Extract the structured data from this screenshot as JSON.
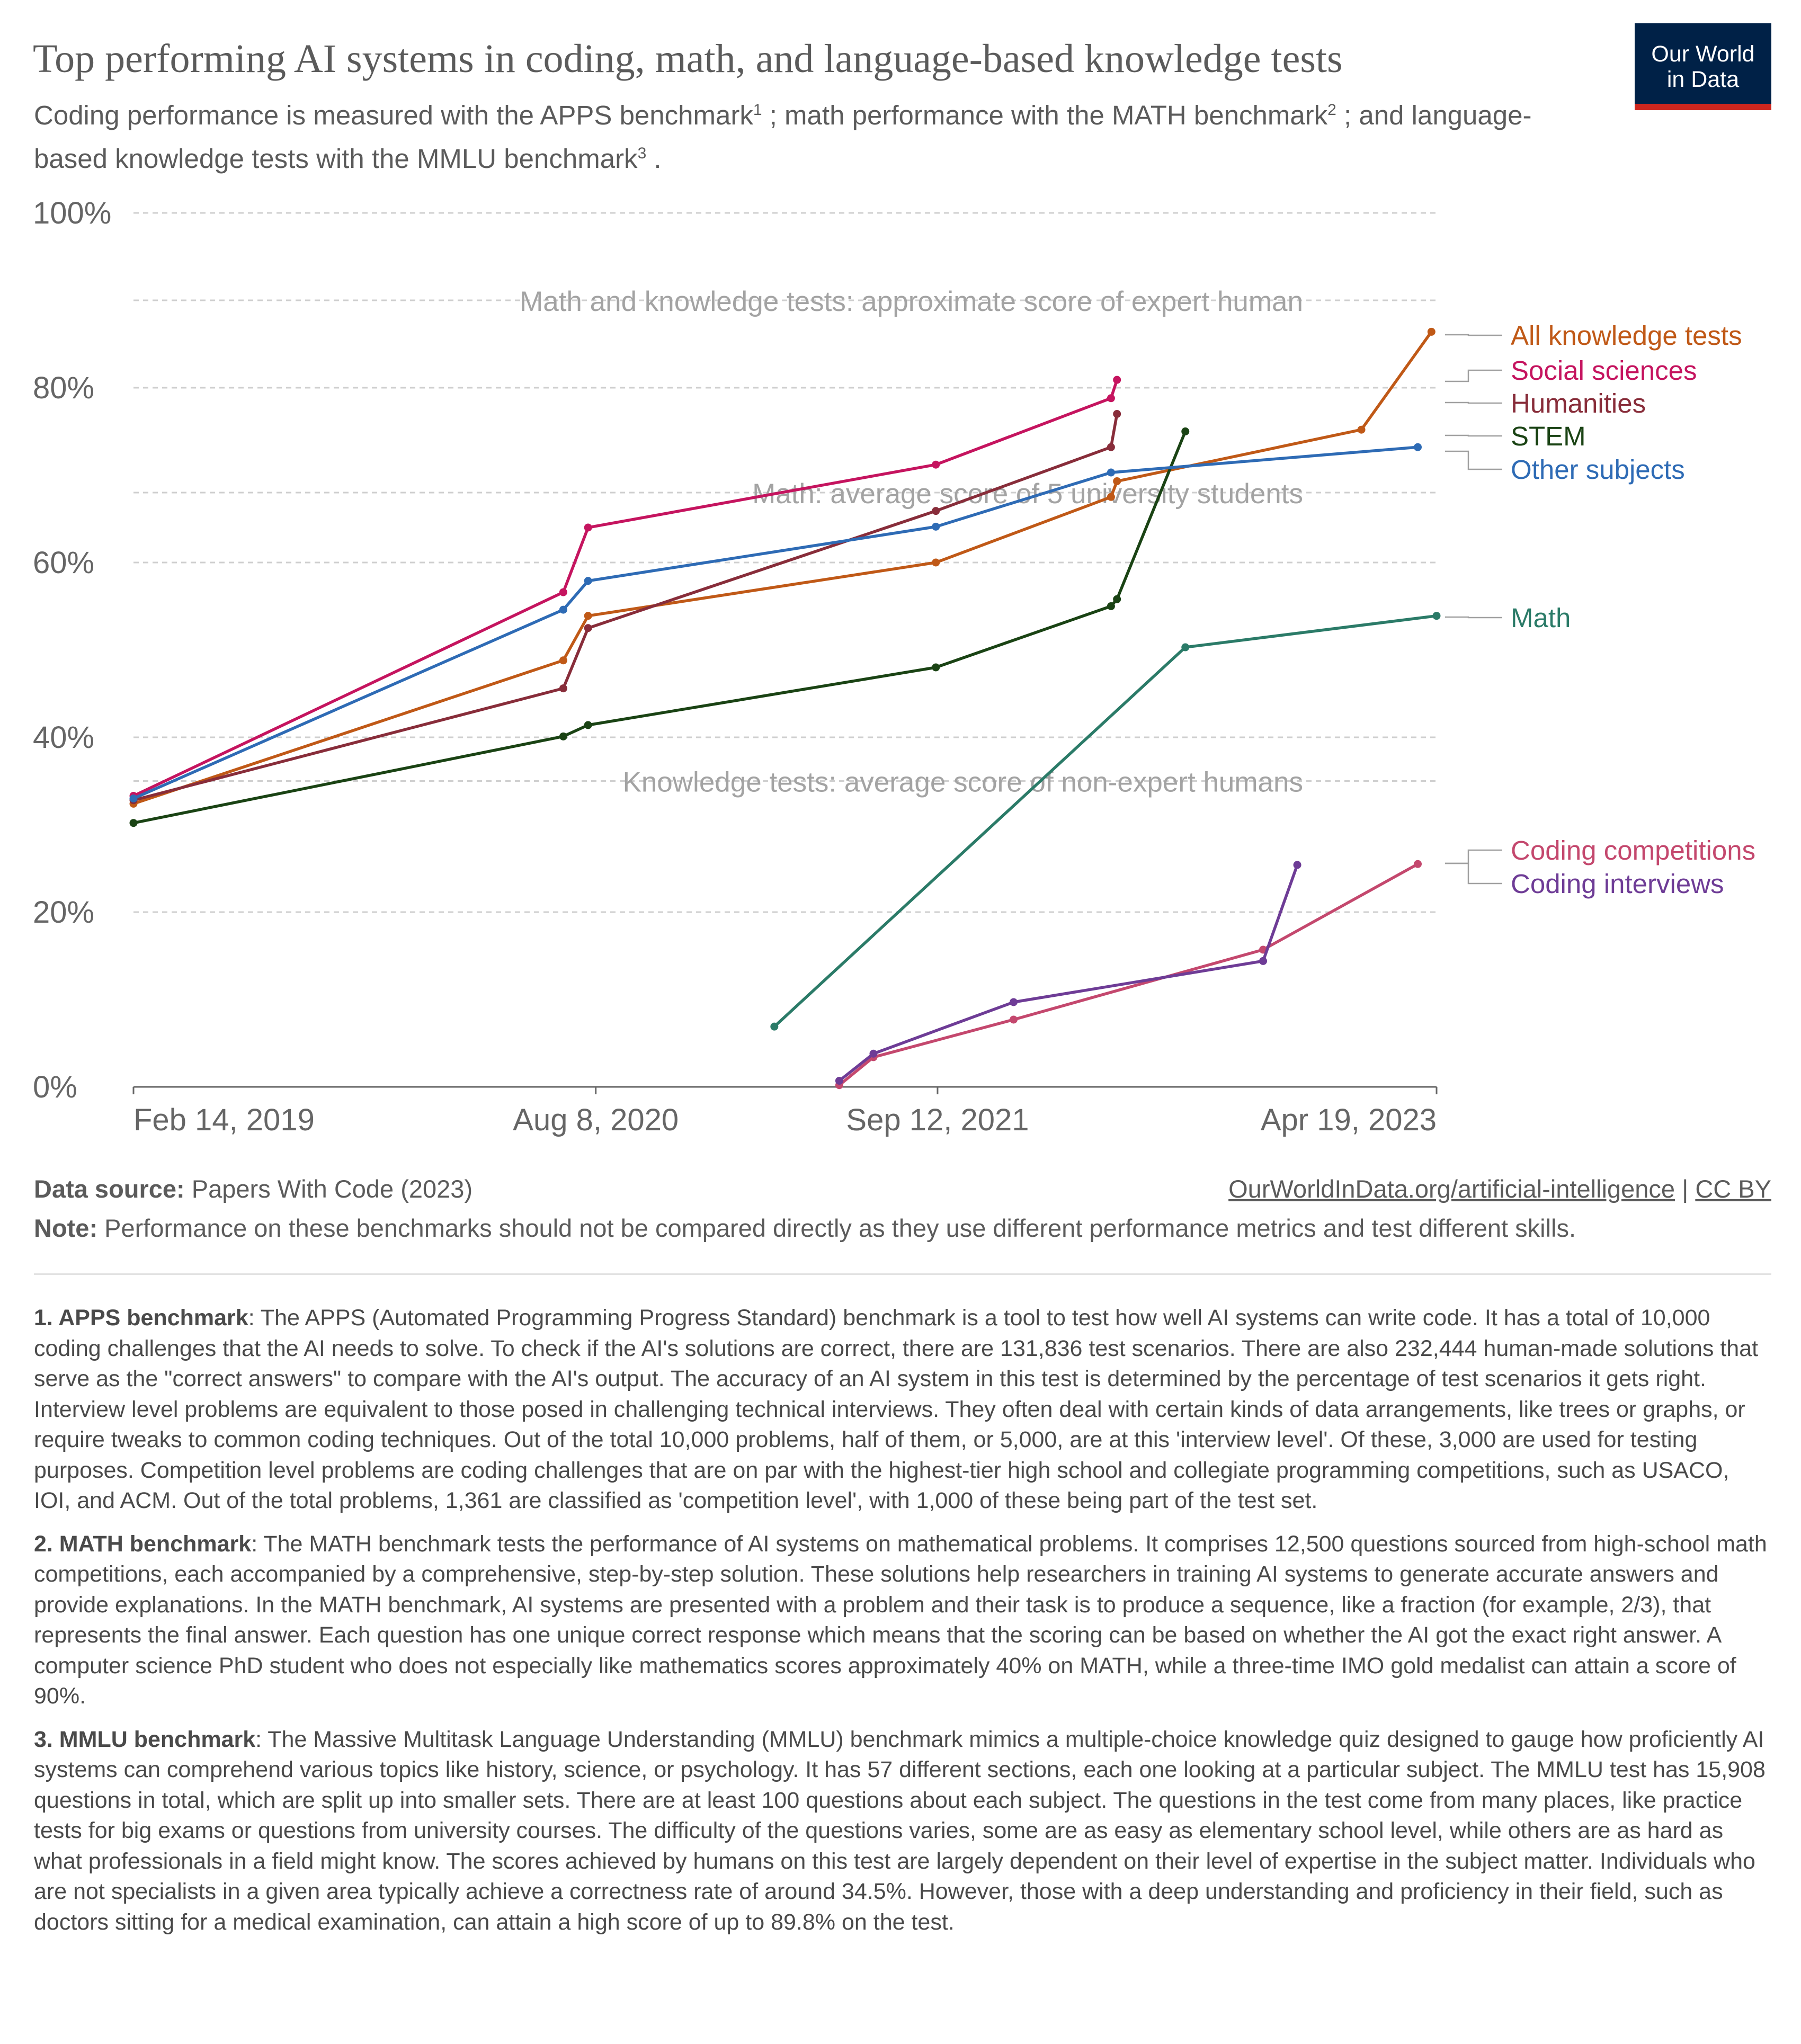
{
  "header": {
    "title": "Top performing AI systems in coding, math, and language-based knowledge tests",
    "subtitle_parts": [
      "Coding performance is measured with the APPS benchmark",
      "1",
      " ; math performance with the MATH benchmark",
      "2",
      " ; and language-based knowledge tests with the MMLU benchmark",
      "3",
      " ."
    ]
  },
  "logo": {
    "line1": "Our World",
    "line2": "in Data"
  },
  "colors": {
    "All knowledge tests": "#c05917",
    "Social sciences": "#c5145f",
    "Humanities": "#882d3a",
    "STEM": "#1a4314",
    "Other subjects": "#2e6bb5",
    "Math": "#2b7b68",
    "Coding competitions": "#c4486e",
    "Coding interviews": "#6e3c96",
    "grid": "#cfcfcf",
    "axis": "#666666",
    "reference_text": "#a3a3a3"
  },
  "chart_data": {
    "type": "line",
    "y_unit": "%",
    "ylim": [
      0,
      100
    ],
    "y_ticks": [
      {
        "v": 0,
        "label": "0%"
      },
      {
        "v": 20,
        "label": "20%"
      },
      {
        "v": 40,
        "label": "40%"
      },
      {
        "v": 60,
        "label": "60%"
      },
      {
        "v": 80,
        "label": "80%"
      },
      {
        "v": 100,
        "label": "100%"
      }
    ],
    "xlim": [
      "2019-02-14",
      "2023-04-19"
    ],
    "x_ticks": [
      {
        "date": "2019-02-14",
        "label": "Feb 14, 2019"
      },
      {
        "date": "2020-08-08",
        "label": "Aug 8, 2020"
      },
      {
        "date": "2021-09-12",
        "label": "Sep 12, 2021"
      },
      {
        "date": "2023-04-19",
        "label": "Apr 19, 2023"
      }
    ],
    "grid": true,
    "reference_lines": [
      {
        "y": 90,
        "label": "Math and knowledge tests: approximate score of expert human"
      },
      {
        "y": 68,
        "label": "Math: average score of 5 university students"
      },
      {
        "y": 35,
        "label": "Knowledge tests: average score of non-expert humans"
      }
    ],
    "series": [
      {
        "name": "All knowledge tests",
        "points": [
          [
            "2019-02-14",
            32.4
          ],
          [
            "2020-07-01",
            48.8
          ],
          [
            "2020-07-30",
            53.9
          ],
          [
            "2021-09-10",
            60.0
          ],
          [
            "2022-04-03",
            67.5
          ],
          [
            "2022-04-10",
            69.3
          ],
          [
            "2023-01-21",
            75.2
          ],
          [
            "2023-04-13",
            86.4
          ]
        ]
      },
      {
        "name": "Social sciences",
        "points": [
          [
            "2019-02-14",
            33.3
          ],
          [
            "2020-07-01",
            56.6
          ],
          [
            "2020-07-30",
            64.0
          ],
          [
            "2021-09-10",
            71.2
          ],
          [
            "2022-04-03",
            78.8
          ],
          [
            "2022-04-10",
            80.9
          ]
        ]
      },
      {
        "name": "Humanities",
        "points": [
          [
            "2019-02-14",
            32.8
          ],
          [
            "2020-07-01",
            45.6
          ],
          [
            "2020-07-30",
            52.5
          ],
          [
            "2021-09-10",
            65.9
          ],
          [
            "2022-04-03",
            73.2
          ],
          [
            "2022-04-10",
            77.0
          ]
        ]
      },
      {
        "name": "STEM",
        "points": [
          [
            "2019-02-14",
            30.2
          ],
          [
            "2020-07-01",
            40.1
          ],
          [
            "2020-07-30",
            41.4
          ],
          [
            "2021-09-10",
            48.0
          ],
          [
            "2022-04-03",
            55.0
          ],
          [
            "2022-04-10",
            55.8
          ],
          [
            "2022-06-29",
            75.0
          ]
        ]
      },
      {
        "name": "Other subjects",
        "points": [
          [
            "2019-02-14",
            33.0
          ],
          [
            "2020-07-01",
            54.6
          ],
          [
            "2020-07-30",
            57.9
          ],
          [
            "2021-09-10",
            64.1
          ],
          [
            "2022-04-03",
            70.3
          ],
          [
            "2023-03-28",
            73.2
          ]
        ]
      },
      {
        "name": "Math",
        "points": [
          [
            "2021-03-05",
            6.9
          ],
          [
            "2022-06-29",
            50.3
          ],
          [
            "2023-04-19",
            53.9
          ]
        ]
      },
      {
        "name": "Coding competitions",
        "points": [
          [
            "2021-05-20",
            0.2
          ],
          [
            "2021-06-29",
            3.4
          ],
          [
            "2021-12-10",
            7.7
          ],
          [
            "2022-09-28",
            15.7
          ],
          [
            "2023-03-28",
            25.5
          ]
        ]
      },
      {
        "name": "Coding interviews",
        "points": [
          [
            "2021-05-20",
            0.7
          ],
          [
            "2021-06-29",
            3.8
          ],
          [
            "2021-12-10",
            9.7
          ],
          [
            "2022-09-28",
            14.4
          ],
          [
            "2022-11-07",
            25.4
          ]
        ]
      }
    ]
  },
  "footer": {
    "source_label": "Data source:",
    "source_text": "Papers With Code (2023)",
    "note_label": "Note:",
    "note_text": "Performance on these benchmarks should not be compared directly as they use different performance metrics and test different skills.",
    "link_text": "OurWorldInData.org/artificial-intelligence",
    "separator": "|",
    "license_text": "CC BY"
  },
  "notes": [
    {
      "label": "1. APPS benchmark",
      "text": ": The APPS (Automated Programming Progress Standard) benchmark is a tool to test how well AI systems can write code. It has a total of 10,000 coding challenges that the AI needs to solve. To check if the AI's solutions are correct, there are 131,836 test scenarios. There are also 232,444 human-made solutions that serve as the \"correct answers\" to compare with the AI's output. The accuracy of an AI system in this test is determined by the percentage of test scenarios it gets right. Interview level problems are equivalent to those posed in challenging technical interviews. They often deal with certain kinds of data arrangements, like trees or graphs, or require tweaks to common coding techniques. Out of the total 10,000 problems, half of them, or 5,000, are at this 'interview level'. Of these, 3,000 are used for testing purposes. Competition level problems are coding challenges that are on par with the highest-tier high school and collegiate programming competitions, such as USACO, IOI, and ACM. Out of the total problems, 1,361 are classified as 'competition level', with 1,000 of these being part of the test set."
    },
    {
      "label": "2. MATH benchmark",
      "text": ": The MATH benchmark tests the performance of AI systems on mathematical problems. It comprises 12,500 questions sourced from high-school math competitions, each accompanied by a comprehensive, step-by-step solution. These solutions help researchers in training AI systems to generate accurate answers and provide explanations. In the MATH benchmark, AI systems are presented with a problem and their task is to produce a sequence, like a fraction (for example, 2/3), that represents the final answer. Each question has one unique correct response which means that the scoring can be based on whether the AI got the exact right answer. A computer science PhD student who does not especially like mathematics scores approximately 40% on MATH, while a three-time IMO gold medalist can attain a score of 90%."
    },
    {
      "label": "3. MMLU benchmark",
      "text": ": The Massive Multitask Language Understanding (MMLU) benchmark mimics a multiple-choice knowledge quiz designed to gauge how proficiently AI systems can comprehend various topics like history, science, or psychology. It has 57 different sections, each one looking at a particular subject. The MMLU test has 15,908 questions in total, which are split up into smaller sets. There are at least 100 questions about each subject. The questions in the test come from many places, like practice tests for big exams or questions from university courses. The difficulty of the questions varies, some are as easy as elementary school level, while others are as hard as what professionals in a field might know. The scores achieved by humans on this test are largely dependent on their level of expertise in the subject matter. Individuals who are not specialists in a given area typically achieve a correctness rate of around 34.5%. However, those with a deep understanding and proficiency in their field, such as doctors sitting for a medical examination, can attain a high score of up to 89.8% on the test."
    }
  ]
}
